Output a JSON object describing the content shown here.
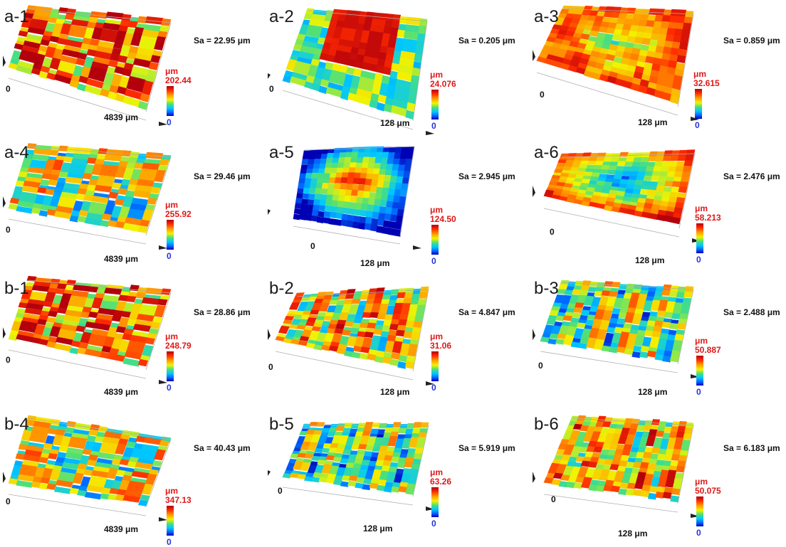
{
  "colors": {
    "max_label": "#e01818",
    "min_label": "#2633d8",
    "colormap": [
      "#0000b4",
      "#0064ff",
      "#00c8ff",
      "#4ce07a",
      "#f3f300",
      "#ff9a00",
      "#ff2a00",
      "#b3000c"
    ]
  },
  "panels": [
    {
      "id": "a-1",
      "sa": "Sa = 22.95 μm",
      "max": "202.44",
      "min": "0",
      "unit": "μm",
      "zero": "0",
      "xaxis": "4839 μm",
      "shape": "flat",
      "level": 0.75
    },
    {
      "id": "a-2",
      "sa": "Sa = 0.205 μm",
      "max": "24.076",
      "min": "0",
      "unit": "μm",
      "zero": "0",
      "xaxis": "128 μm",
      "shape": "plateau",
      "level": 0.9
    },
    {
      "id": "a-3",
      "sa": "Sa = 0.859 μm",
      "max": "32.615",
      "min": "0",
      "unit": "μm",
      "zero": "0",
      "xaxis": "128 μm",
      "shape": "rim",
      "level": 0.6
    },
    {
      "id": "a-4",
      "sa": "Sa = 29.46 μm",
      "max": "255.92",
      "min": "0",
      "unit": "μm",
      "zero": "0",
      "xaxis": "4839 μm",
      "shape": "flat",
      "level": 0.5
    },
    {
      "id": "a-5",
      "sa": "Sa = 2.945 μm",
      "max": "124.50",
      "min": "0",
      "unit": "μm",
      "zero": "0",
      "xaxis": "128 μm",
      "shape": "peak",
      "level": 0.8
    },
    {
      "id": "a-6",
      "sa": "Sa = 2.476 μm",
      "max": "58.213",
      "min": "0",
      "unit": "μm",
      "zero": "0",
      "xaxis": "128 μm",
      "shape": "basin",
      "level": 0.3
    },
    {
      "id": "b-1",
      "sa": "Sa = 28.86 μm",
      "max": "248.79",
      "min": "0",
      "unit": "μm",
      "zero": "0",
      "xaxis": "4839 μm",
      "shape": "flat",
      "level": 0.72
    },
    {
      "id": "b-2",
      "sa": "Sa = 4.847 μm",
      "max": "31.06",
      "min": "0",
      "unit": "μm",
      "zero": "0",
      "xaxis": "128 μm",
      "shape": "ridged",
      "level": 0.6
    },
    {
      "id": "b-3",
      "sa": "Sa = 2.488 μm",
      "max": "50.887",
      "min": "0",
      "unit": "μm",
      "zero": "0",
      "xaxis": "128 μm",
      "shape": "ridged",
      "level": 0.45
    },
    {
      "id": "b-4",
      "sa": "Sa = 40.43 μm",
      "max": "347.13",
      "min": "0",
      "unit": "μm",
      "zero": "0",
      "xaxis": "4839 μm",
      "shape": "flat",
      "level": 0.5
    },
    {
      "id": "b-5",
      "sa": "Sa = 5.919 μm",
      "max": "63.26",
      "min": "0",
      "unit": "μm",
      "zero": "0",
      "xaxis": "128 μm",
      "shape": "ridged",
      "level": 0.4
    },
    {
      "id": "b-6",
      "sa": "Sa = 6.183 μm",
      "max": "50.075",
      "min": "0",
      "unit": "μm",
      "zero": "0",
      "xaxis": "128 μm",
      "shape": "ridged",
      "level": 0.62
    }
  ]
}
